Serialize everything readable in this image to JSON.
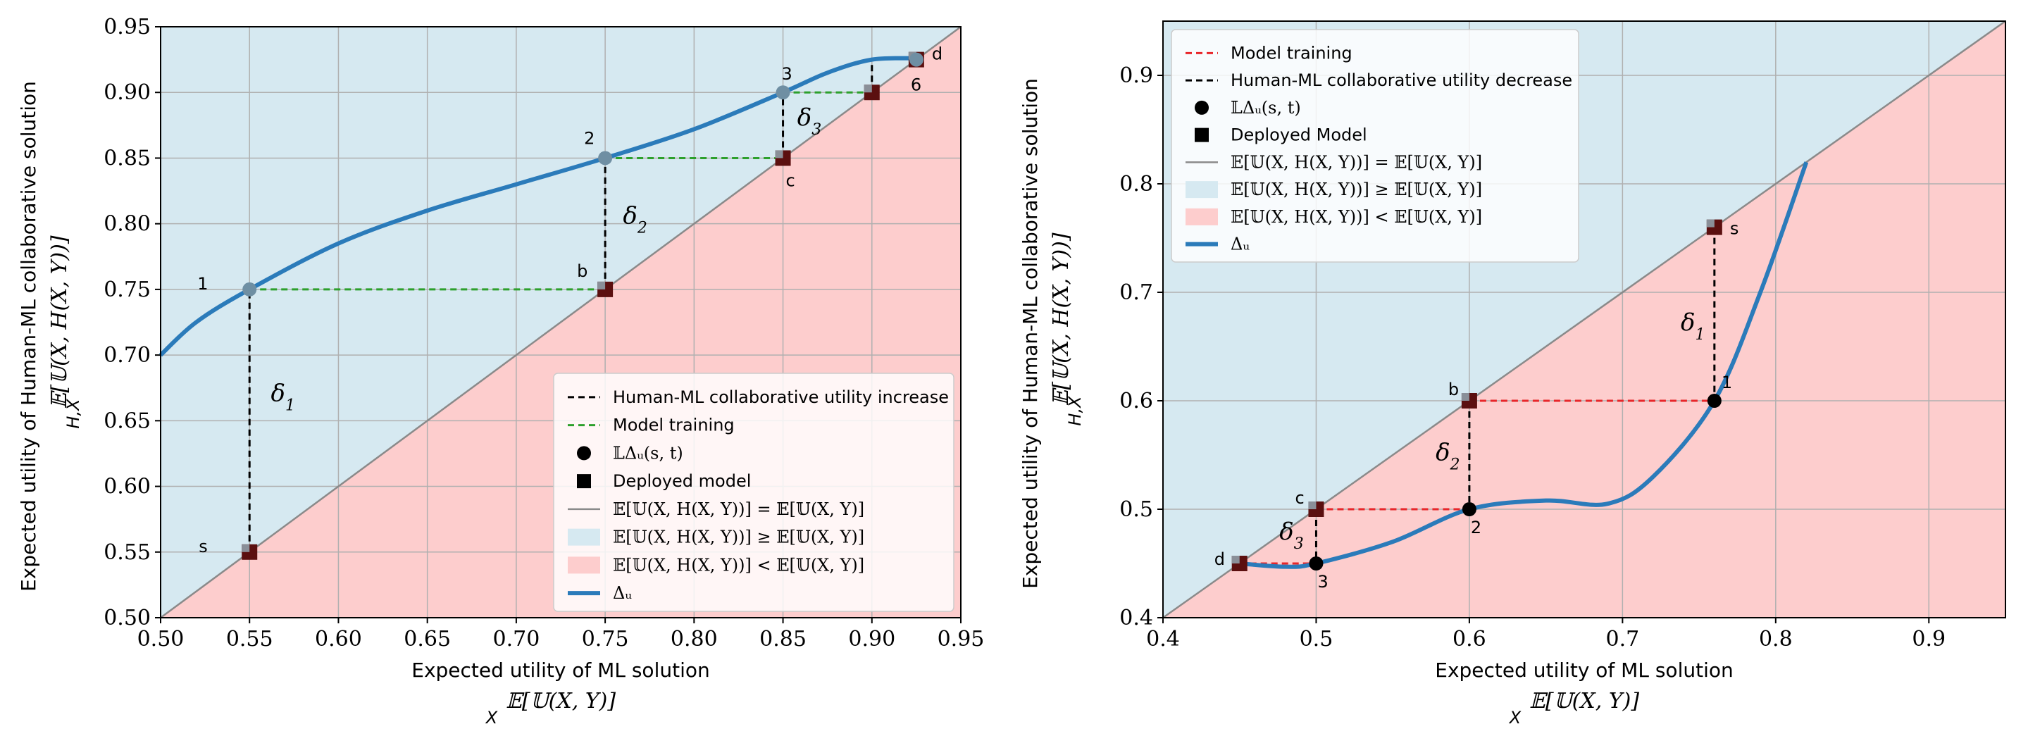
{
  "chart_data": [
    {
      "type": "line",
      "title": "",
      "xlabel": "Expected utility of ML solution",
      "xlabel_math": "E[U(X,Y)]",
      "xlabel_math_sub": "X",
      "ylabel": "Expected utility of Human-ML collaborative solution",
      "ylabel_math": "E[U(X,H(X,Y))]",
      "ylabel_math_sub": "H,X",
      "xlim": [
        0.5,
        0.95
      ],
      "ylim": [
        0.5,
        0.95
      ],
      "xticks": [
        "0.50",
        "0.55",
        "0.60",
        "0.65",
        "0.70",
        "0.75",
        "0.80",
        "0.85",
        "0.90",
        "0.95"
      ],
      "yticks": [
        "0.50",
        "0.55",
        "0.60",
        "0.65",
        "0.70",
        "0.75",
        "0.80",
        "0.85",
        "0.90",
        "0.95"
      ],
      "grid": true,
      "legend_position": "lower-right",
      "colors": {
        "above": "#d6e9f1",
        "below": "#fdcdcd",
        "curve": "#2b7bba",
        "training": "#2ca02c",
        "delta": "#000000",
        "identity": "#8a8a8a"
      },
      "legend": [
        {
          "kind": "dashed",
          "color": "#000000",
          "label": "Human-ML collaborative utility increase"
        },
        {
          "kind": "dashed",
          "color": "#2ca02c",
          "label": "Model training"
        },
        {
          "kind": "circle",
          "label": "𝕃Δᵤ(s, t)"
        },
        {
          "kind": "square",
          "label": "Deployed model"
        },
        {
          "kind": "line",
          "color": "#8a8a8a",
          "label": "𝔼[𝕌(X, H(X, Y))] = 𝔼[𝕌(X, Y)]"
        },
        {
          "kind": "patch",
          "color": "#d6e9f1",
          "label": "𝔼[𝕌(X, H(X, Y))] ≥ 𝔼[𝕌(X, Y)]"
        },
        {
          "kind": "patch",
          "color": "#fdcdcd",
          "label": "𝔼[𝕌(X, H(X, Y))] < 𝔼[𝕌(X, Y)]"
        },
        {
          "kind": "thick",
          "color": "#2b7bba",
          "label": "Δᵤ"
        }
      ],
      "curve": {
        "name": "Δᵤ",
        "x": [
          0.5,
          0.52,
          0.55,
          0.6,
          0.65,
          0.7,
          0.75,
          0.8,
          0.85,
          0.875,
          0.9,
          0.925
        ],
        "y": [
          0.7,
          0.725,
          0.75,
          0.785,
          0.81,
          0.83,
          0.85,
          0.872,
          0.9,
          0.915,
          0.925,
          0.926
        ]
      },
      "circles": [
        {
          "x": 0.55,
          "y": 0.75,
          "label": "1"
        },
        {
          "x": 0.75,
          "y": 0.85,
          "label": "2"
        },
        {
          "x": 0.85,
          "y": 0.9,
          "label": "3"
        },
        {
          "x": 0.925,
          "y": 0.925,
          "label": "6"
        }
      ],
      "squares": [
        {
          "x": 0.55,
          "y": 0.55,
          "label": "s"
        },
        {
          "x": 0.75,
          "y": 0.75,
          "label": "b"
        },
        {
          "x": 0.85,
          "y": 0.85,
          "label": "c"
        },
        {
          "x": 0.9,
          "y": 0.9,
          "label": ""
        },
        {
          "x": 0.925,
          "y": 0.925,
          "label": "d"
        }
      ],
      "training_segments": [
        {
          "x1": 0.55,
          "y1": 0.75,
          "x2": 0.75,
          "y2": 0.75
        },
        {
          "x1": 0.75,
          "y1": 0.85,
          "x2": 0.85,
          "y2": 0.85
        },
        {
          "x1": 0.85,
          "y1": 0.9,
          "x2": 0.9,
          "y2": 0.9
        }
      ],
      "delta_segments": [
        {
          "x1": 0.55,
          "y1": 0.55,
          "x2": 0.55,
          "y2": 0.75,
          "label": "δ",
          "sub": "1",
          "lx": 0.562,
          "ly": 0.665
        },
        {
          "x1": 0.75,
          "y1": 0.75,
          "x2": 0.75,
          "y2": 0.85,
          "label": "δ",
          "sub": "2",
          "lx": 0.76,
          "ly": 0.8
        },
        {
          "x1": 0.85,
          "y1": 0.85,
          "x2": 0.85,
          "y2": 0.9,
          "label": "δ",
          "sub": "3",
          "lx": 0.858,
          "ly": 0.875
        },
        {
          "x1": 0.9,
          "y1": 0.9,
          "x2": 0.9,
          "y2": 0.925,
          "label": "",
          "sub": "",
          "lx": 0,
          "ly": 0
        }
      ]
    },
    {
      "type": "line",
      "title": "",
      "xlabel": "Expected utility of ML solution",
      "xlabel_math": "E[U(X,Y)]",
      "xlabel_math_sub": "X",
      "ylabel": "Expected utility of Human-ML collaborative solution",
      "ylabel_math": "E[U(X,H(X,Y))]",
      "ylabel_math_sub": "H,X",
      "xlim": [
        0.4,
        0.95
      ],
      "ylim": [
        0.4,
        0.95
      ],
      "xticks": [
        "0.4",
        "0.5",
        "0.6",
        "0.7",
        "0.8",
        "0.9"
      ],
      "yticks": [
        "0.4",
        "0.5",
        "0.6",
        "0.7",
        "0.8",
        "0.9"
      ],
      "grid": true,
      "legend_position": "upper-left",
      "colors": {
        "above": "#d6e9f1",
        "below": "#fdcdcd",
        "curve": "#2b7bba",
        "training": "#e8262a",
        "delta": "#000000",
        "identity": "#8a8a8a"
      },
      "legend": [
        {
          "kind": "dashed",
          "color": "#e8262a",
          "label": "Model training"
        },
        {
          "kind": "dashed",
          "color": "#000000",
          "label": "Human-ML collaborative utility decrease"
        },
        {
          "kind": "circle",
          "label": "𝕃Δᵤ(s, t)"
        },
        {
          "kind": "square",
          "label": "Deployed Model"
        },
        {
          "kind": "line",
          "color": "#8a8a8a",
          "label": "𝔼[𝕌(X, H(X, Y))] = 𝔼[𝕌(X, Y)]"
        },
        {
          "kind": "patch",
          "color": "#d6e9f1",
          "label": "𝔼[𝕌(X, H(X, Y))] ≥ 𝔼[𝕌(X, Y)]"
        },
        {
          "kind": "patch",
          "color": "#fdcdcd",
          "label": "𝔼[𝕌(X, H(X, Y))] < 𝔼[𝕌(X, Y)]"
        },
        {
          "kind": "thick",
          "color": "#2b7bba",
          "label": "Δᵤ"
        }
      ],
      "curve": {
        "name": "Δᵤ",
        "x": [
          0.45,
          0.48,
          0.5,
          0.55,
          0.6,
          0.65,
          0.69,
          0.72,
          0.76,
          0.79,
          0.82
        ],
        "y": [
          0.45,
          0.447,
          0.45,
          0.47,
          0.5,
          0.508,
          0.505,
          0.53,
          0.6,
          0.7,
          0.82
        ]
      },
      "circles": [
        {
          "x": 0.76,
          "y": 0.6,
          "label": "1"
        },
        {
          "x": 0.6,
          "y": 0.5,
          "label": "2"
        },
        {
          "x": 0.5,
          "y": 0.45,
          "label": "3"
        }
      ],
      "squares": [
        {
          "x": 0.76,
          "y": 0.76,
          "label": "s"
        },
        {
          "x": 0.6,
          "y": 0.6,
          "label": "b"
        },
        {
          "x": 0.5,
          "y": 0.5,
          "label": "c"
        },
        {
          "x": 0.45,
          "y": 0.45,
          "label": "d"
        }
      ],
      "training_segments": [
        {
          "x1": 0.6,
          "y1": 0.6,
          "x2": 0.76,
          "y2": 0.6
        },
        {
          "x1": 0.5,
          "y1": 0.5,
          "x2": 0.6,
          "y2": 0.5
        },
        {
          "x1": 0.45,
          "y1": 0.45,
          "x2": 0.5,
          "y2": 0.45
        }
      ],
      "delta_segments": [
        {
          "x1": 0.76,
          "y1": 0.76,
          "x2": 0.76,
          "y2": 0.6,
          "label": "δ",
          "sub": "1",
          "lx": 0.738,
          "ly": 0.665
        },
        {
          "x1": 0.6,
          "y1": 0.6,
          "x2": 0.6,
          "y2": 0.5,
          "label": "δ",
          "sub": "2",
          "lx": 0.578,
          "ly": 0.545
        },
        {
          "x1": 0.5,
          "y1": 0.5,
          "x2": 0.5,
          "y2": 0.45,
          "label": "δ",
          "sub": "3",
          "lx": 0.476,
          "ly": 0.472
        }
      ]
    }
  ]
}
